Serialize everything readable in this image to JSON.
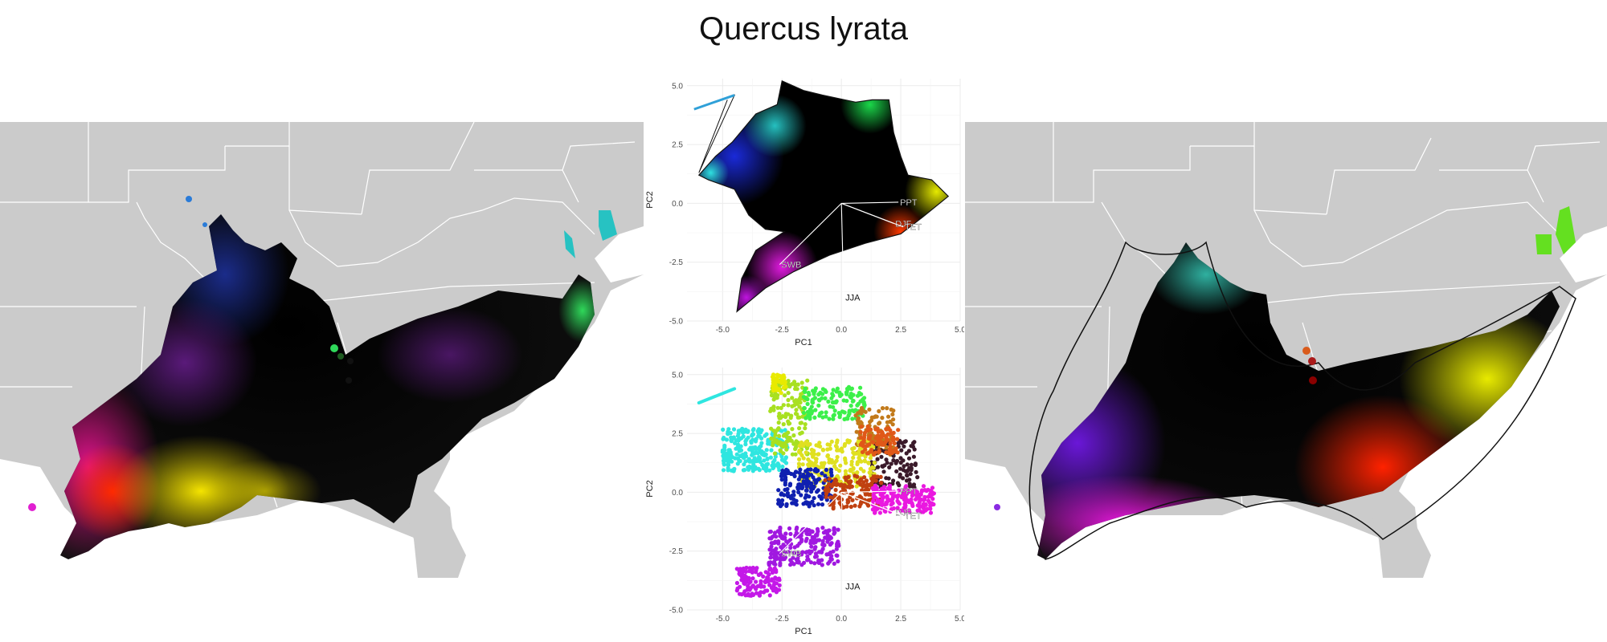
{
  "title": "Quercus lyrata",
  "colors": {
    "land": "#cbcbcb",
    "border": "#ffffff",
    "grid": "#ebebeb",
    "hull": "#111111"
  },
  "chart_data": [
    {
      "type": "scatter",
      "title": "",
      "xlabel": "PC1",
      "ylabel": "PC2",
      "xlim": [
        -6.5,
        5
      ],
      "ylim": [
        -5,
        5.3
      ],
      "xticks": [
        "-5.0",
        "-2.5",
        "0.0",
        "2.5",
        "5.0"
      ],
      "yticks": [
        "5.0",
        "2.5",
        "0.0",
        "-2.5",
        "-5.0"
      ],
      "grid": true,
      "description_color": "points colored by position in PC space (convex-hull style color wheel)",
      "loadings": [
        {
          "label": "PPT",
          "x": 2.4,
          "y": 0.05
        },
        {
          "label": "DJF",
          "x": 2.2,
          "y": -0.85
        },
        {
          "label": "TET",
          "x": 2.6,
          "y": -1.0
        },
        {
          "label": "SWB",
          "x": -2.6,
          "y": -2.6
        },
        {
          "label": "JJA",
          "x": 0.1,
          "y": -4.0
        }
      ]
    },
    {
      "type": "scatter",
      "title": "",
      "xlabel": "PC1",
      "ylabel": "PC2",
      "xlim": [
        -6.5,
        5
      ],
      "ylim": [
        -5,
        5.3
      ],
      "xticks": [
        "-5.0",
        "-2.5",
        "0.0",
        "2.5",
        "5.0"
      ],
      "yticks": [
        "5.0",
        "2.5",
        "0.0",
        "-2.5",
        "-5.0"
      ],
      "grid": true,
      "loadings": [
        {
          "label": "PPT",
          "x": 2.4,
          "y": 0.05
        },
        {
          "label": "DJF",
          "x": 2.2,
          "y": -0.85
        },
        {
          "label": "TET",
          "x": 2.6,
          "y": -1.0
        },
        {
          "label": "SWB",
          "x": -2.6,
          "y": -2.6
        },
        {
          "label": "JJA",
          "x": 0.1,
          "y": -4.0
        }
      ]
    }
  ]
}
